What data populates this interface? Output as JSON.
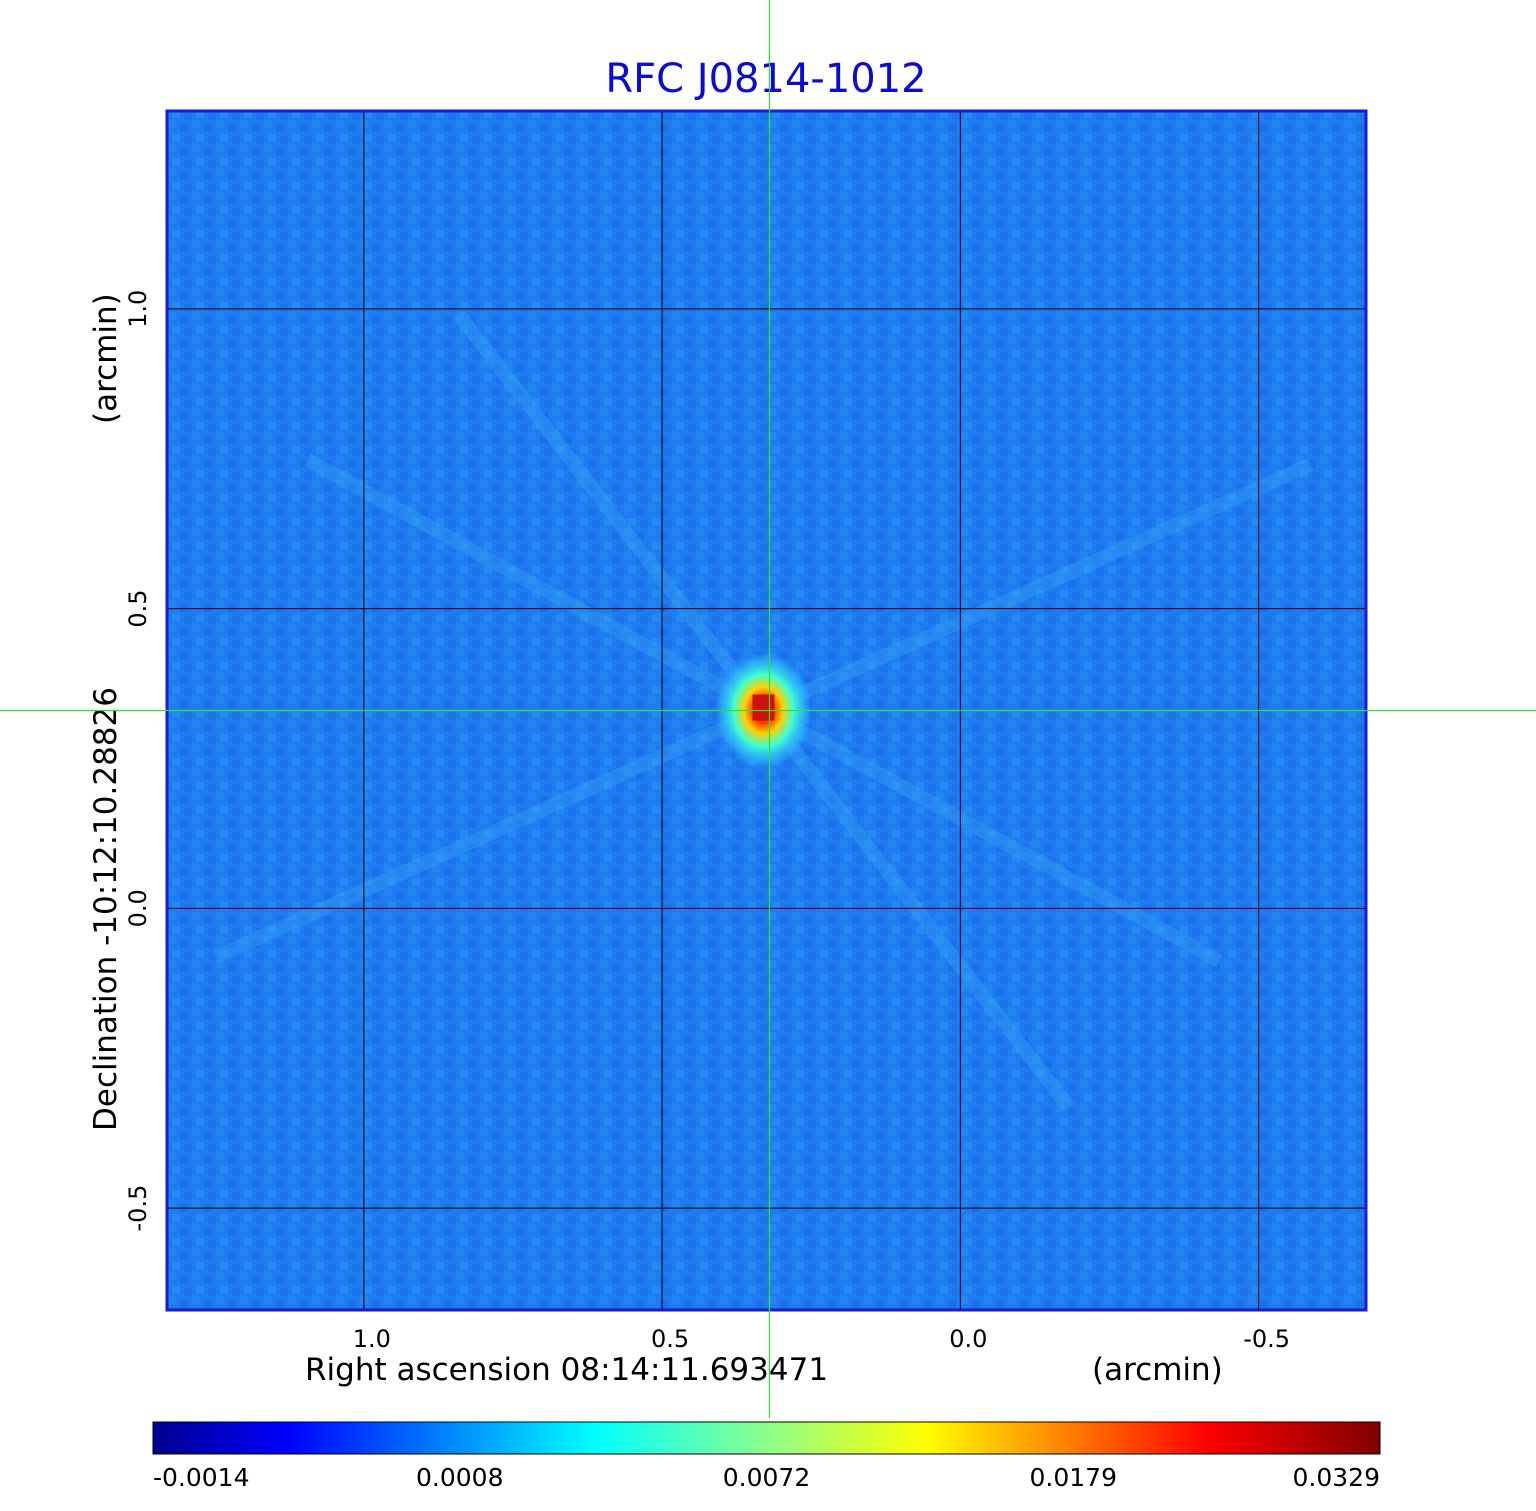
{
  "chart_data": {
    "type": "heatmap",
    "title": "RFC J0814-1012",
    "xlabel": "Right ascension  08:14:11.693471",
    "xunit": "(arcmin)",
    "ylabel": "Declination  -10:12:10.28826",
    "yunit": "(arcmin)",
    "xlim": [
      1.33,
      -0.68
    ],
    "ylim": [
      -0.67,
      1.33
    ],
    "x_ticks": [
      {
        "value": 1.0,
        "label": "1.0"
      },
      {
        "value": 0.5,
        "label": "0.5"
      },
      {
        "value": 0.0,
        "label": "0.0"
      },
      {
        "value": -0.5,
        "label": "-0.5"
      }
    ],
    "y_ticks": [
      {
        "value": 1.0,
        "label": "1.0"
      },
      {
        "value": 0.5,
        "label": "0.5"
      },
      {
        "value": 0.0,
        "label": "0.0"
      },
      {
        "value": -0.5,
        "label": "-0.5"
      }
    ],
    "grid": true,
    "source_peak": {
      "x": 0.33,
      "y": 0.33,
      "value": 0.0329
    },
    "crosshair": {
      "x": 0.32,
      "y": 0.33
    },
    "colormap": "jet",
    "colorbar": {
      "tick_labels": [
        "-0.0014",
        "0.0008",
        "0.0072",
        "0.0179",
        "0.0329"
      ]
    }
  },
  "colors": {
    "title": "#0b0bd6",
    "frame": "#1a1ad9",
    "crosshair": "#29e629",
    "grid": "#000000",
    "background_map": "#1e7cf0"
  }
}
